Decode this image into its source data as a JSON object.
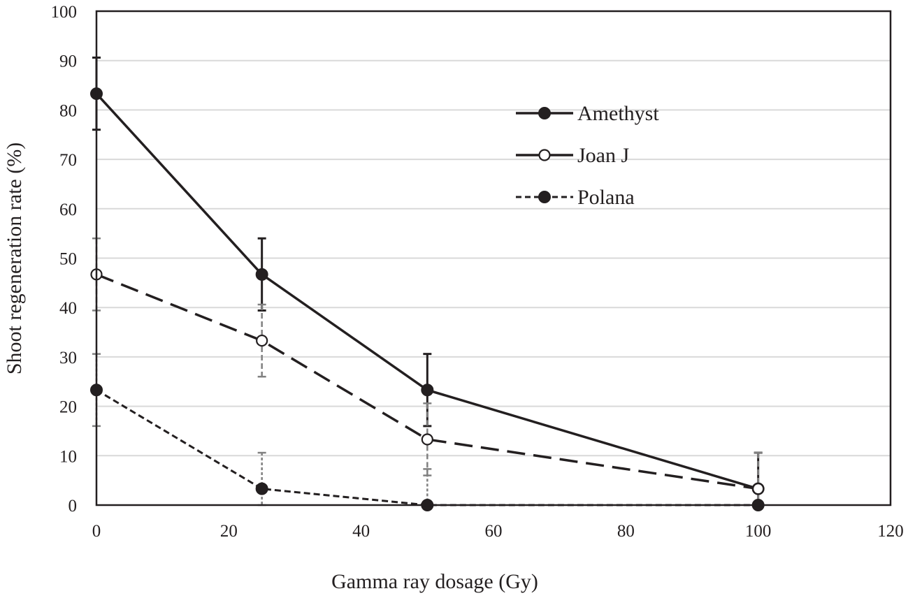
{
  "chart_data": {
    "type": "line",
    "title": "",
    "xlabel": "Gamma ray dosage (Gy)",
    "ylabel": "Shoot regeneration rate (%)",
    "xlim": [
      0,
      120
    ],
    "ylim": [
      0,
      100
    ],
    "xticks": [
      0,
      20,
      40,
      60,
      80,
      100,
      120
    ],
    "yticks": [
      0,
      10,
      20,
      30,
      40,
      50,
      60,
      70,
      80,
      90,
      100
    ],
    "grid": "horizontal",
    "legend_position": "top-right",
    "x": [
      0,
      25,
      50,
      100
    ],
    "series": [
      {
        "name": "Amethyst",
        "values": [
          83.3,
          46.7,
          23.3,
          3.3
        ],
        "error": [
          7.3,
          7.3,
          7.3,
          7.3
        ],
        "line_style": "solid",
        "marker": "filled-circle",
        "color": "#231f20",
        "error_color": "#231f20"
      },
      {
        "name": "Joan J",
        "values": [
          46.7,
          33.3,
          13.3,
          3.3
        ],
        "error": [
          7.3,
          7.3,
          7.3,
          7.3
        ],
        "line_style": "long-dash",
        "marker": "open-circle",
        "color": "#231f20",
        "error_color": "#808080"
      },
      {
        "name": "Polana",
        "values": [
          23.3,
          3.3,
          0,
          0
        ],
        "error": [
          7.3,
          7.3,
          7.3,
          0
        ],
        "line_style": "short-dash",
        "marker": "filled-circle",
        "color": "#231f20",
        "error_color": "#808080"
      }
    ]
  }
}
